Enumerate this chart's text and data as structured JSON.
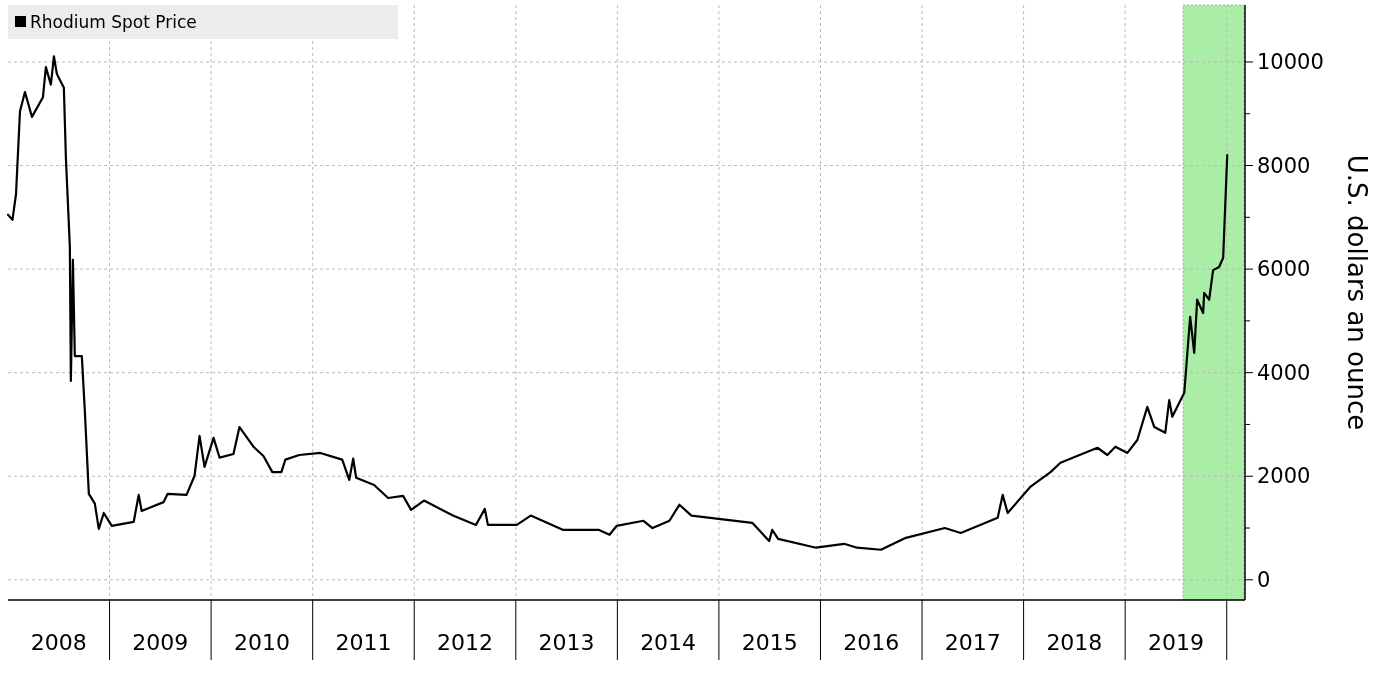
{
  "chart_data": {
    "type": "line",
    "ylabel": "U.S. dollars an ounce",
    "legend": "top left",
    "grid": true,
    "line_style": "solid",
    "marker": "none",
    "xlim": [
      2008,
      2020.18
    ],
    "ylim": [
      -390,
      11100
    ],
    "xticks": [
      {
        "value": 2008.5,
        "label": "2008"
      },
      {
        "value": 2009,
        "label": null
      },
      {
        "value": 2009.5,
        "label": "2009"
      },
      {
        "value": 2010,
        "label": null
      },
      {
        "value": 2010.5,
        "label": "2010"
      },
      {
        "value": 2011,
        "label": null
      },
      {
        "value": 2011.5,
        "label": "2011"
      },
      {
        "value": 2012,
        "label": null
      },
      {
        "value": 2012.5,
        "label": "2012"
      },
      {
        "value": 2013,
        "label": null
      },
      {
        "value": 2013.5,
        "label": "2013"
      },
      {
        "value": 2014,
        "label": null
      },
      {
        "value": 2014.5,
        "label": "2014"
      },
      {
        "value": 2015,
        "label": null
      },
      {
        "value": 2015.5,
        "label": "2015"
      },
      {
        "value": 2016,
        "label": null
      },
      {
        "value": 2016.5,
        "label": "2016"
      },
      {
        "value": 2017,
        "label": null
      },
      {
        "value": 2017.5,
        "label": "2017"
      },
      {
        "value": 2018,
        "label": null
      },
      {
        "value": 2018.5,
        "label": "2018"
      },
      {
        "value": 2019,
        "label": null
      },
      {
        "value": 2019.5,
        "label": "2019"
      },
      {
        "value": 2020,
        "label": null
      }
    ],
    "yticks": [
      0,
      {
        "value": 1000,
        "label": null
      },
      2000,
      {
        "value": 3000,
        "label": null
      },
      4000,
      {
        "value": 5000,
        "label": null
      },
      6000,
      {
        "value": 7000,
        "label": null
      },
      8000,
      {
        "value": 9000,
        "label": null
      },
      10000
    ],
    "bands": [
      {
        "axis": "x",
        "from": 2019.57,
        "to": 2020.17,
        "color": "#8ee88a"
      }
    ],
    "series": [
      {
        "name": "Rhodium Spot Price",
        "color": "#000000",
        "x": [
          2008,
          2008.044,
          2008.079,
          2008.118,
          2008.167,
          2008.236,
          2008.344,
          2008.373,
          2008.422,
          2008.452,
          2008.481,
          2008.55,
          2008.57,
          2008.609,
          2008.619,
          2008.639,
          2008.658,
          2008.727,
          2008.756,
          2008.796,
          2008.855,
          2008.894,
          2008.943,
          2009.022,
          2009.238,
          2009.287,
          2009.316,
          2009.532,
          2009.572,
          2009.758,
          2009.837,
          2009.886,
          2009.935,
          2010.024,
          2010.083,
          2010.22,
          2010.279,
          2010.417,
          2010.515,
          2010.603,
          2010.692,
          2010.731,
          2010.868,
          2011.075,
          2011.291,
          2011.36,
          2011.399,
          2011.428,
          2011.605,
          2011.743,
          2011.89,
          2011.969,
          2012.096,
          2012.381,
          2012.607,
          2012.695,
          2012.725,
          2013.01,
          2013.147,
          2013.462,
          2013.815,
          2013.923,
          2013.992,
          2014.257,
          2014.346,
          2014.513,
          2014.611,
          2014.729,
          2015.328,
          2015.495,
          2015.525,
          2015.583,
          2015.957,
          2016.232,
          2016.36,
          2016.595,
          2016.841,
          2017.224,
          2017.381,
          2017.745,
          2017.794,
          2017.843,
          2018.069,
          2018.265,
          2018.363,
          2018.727,
          2018.825,
          2018.904,
          2019.022,
          2019.12,
          2019.218,
          2019.287,
          2019.395,
          2019.434,
          2019.464,
          2019.582,
          2019.64,
          2019.68,
          2019.709,
          2019.768,
          2019.778,
          2019.827,
          2019.866,
          2019.925,
          2019.965,
          2020.005
        ],
        "values": [
          7050,
          6950,
          7450,
          9050,
          9420,
          8940,
          9320,
          9900,
          9560,
          10110,
          9770,
          9500,
          8150,
          6430,
          3840,
          6180,
          4320,
          4320,
          3280,
          1660,
          1470,
          985,
          1290,
          1040,
          1120,
          1640,
          1330,
          1500,
          1660,
          1640,
          2010,
          2780,
          2180,
          2740,
          2360,
          2430,
          2950,
          2570,
          2390,
          2080,
          2080,
          2320,
          2410,
          2450,
          2320,
          1930,
          2340,
          1970,
          1830,
          1580,
          1620,
          1350,
          1530,
          1240,
          1060,
          1370,
          1060,
          1060,
          1240,
          965,
          965,
          870,
          1040,
          1140,
          1000,
          1140,
          1450,
          1240,
          1100,
          750,
          965,
          790,
          620,
          695,
          620,
          580,
          810,
          1000,
          905,
          1200,
          1640,
          1290,
          1800,
          2080,
          2260,
          2550,
          2410,
          2570,
          2450,
          2700,
          3340,
          2950,
          2840,
          3470,
          3150,
          3610,
          5080,
          4380,
          5410,
          5150,
          5540,
          5410,
          5980,
          6040,
          6220,
          8200
        ]
      }
    ]
  }
}
